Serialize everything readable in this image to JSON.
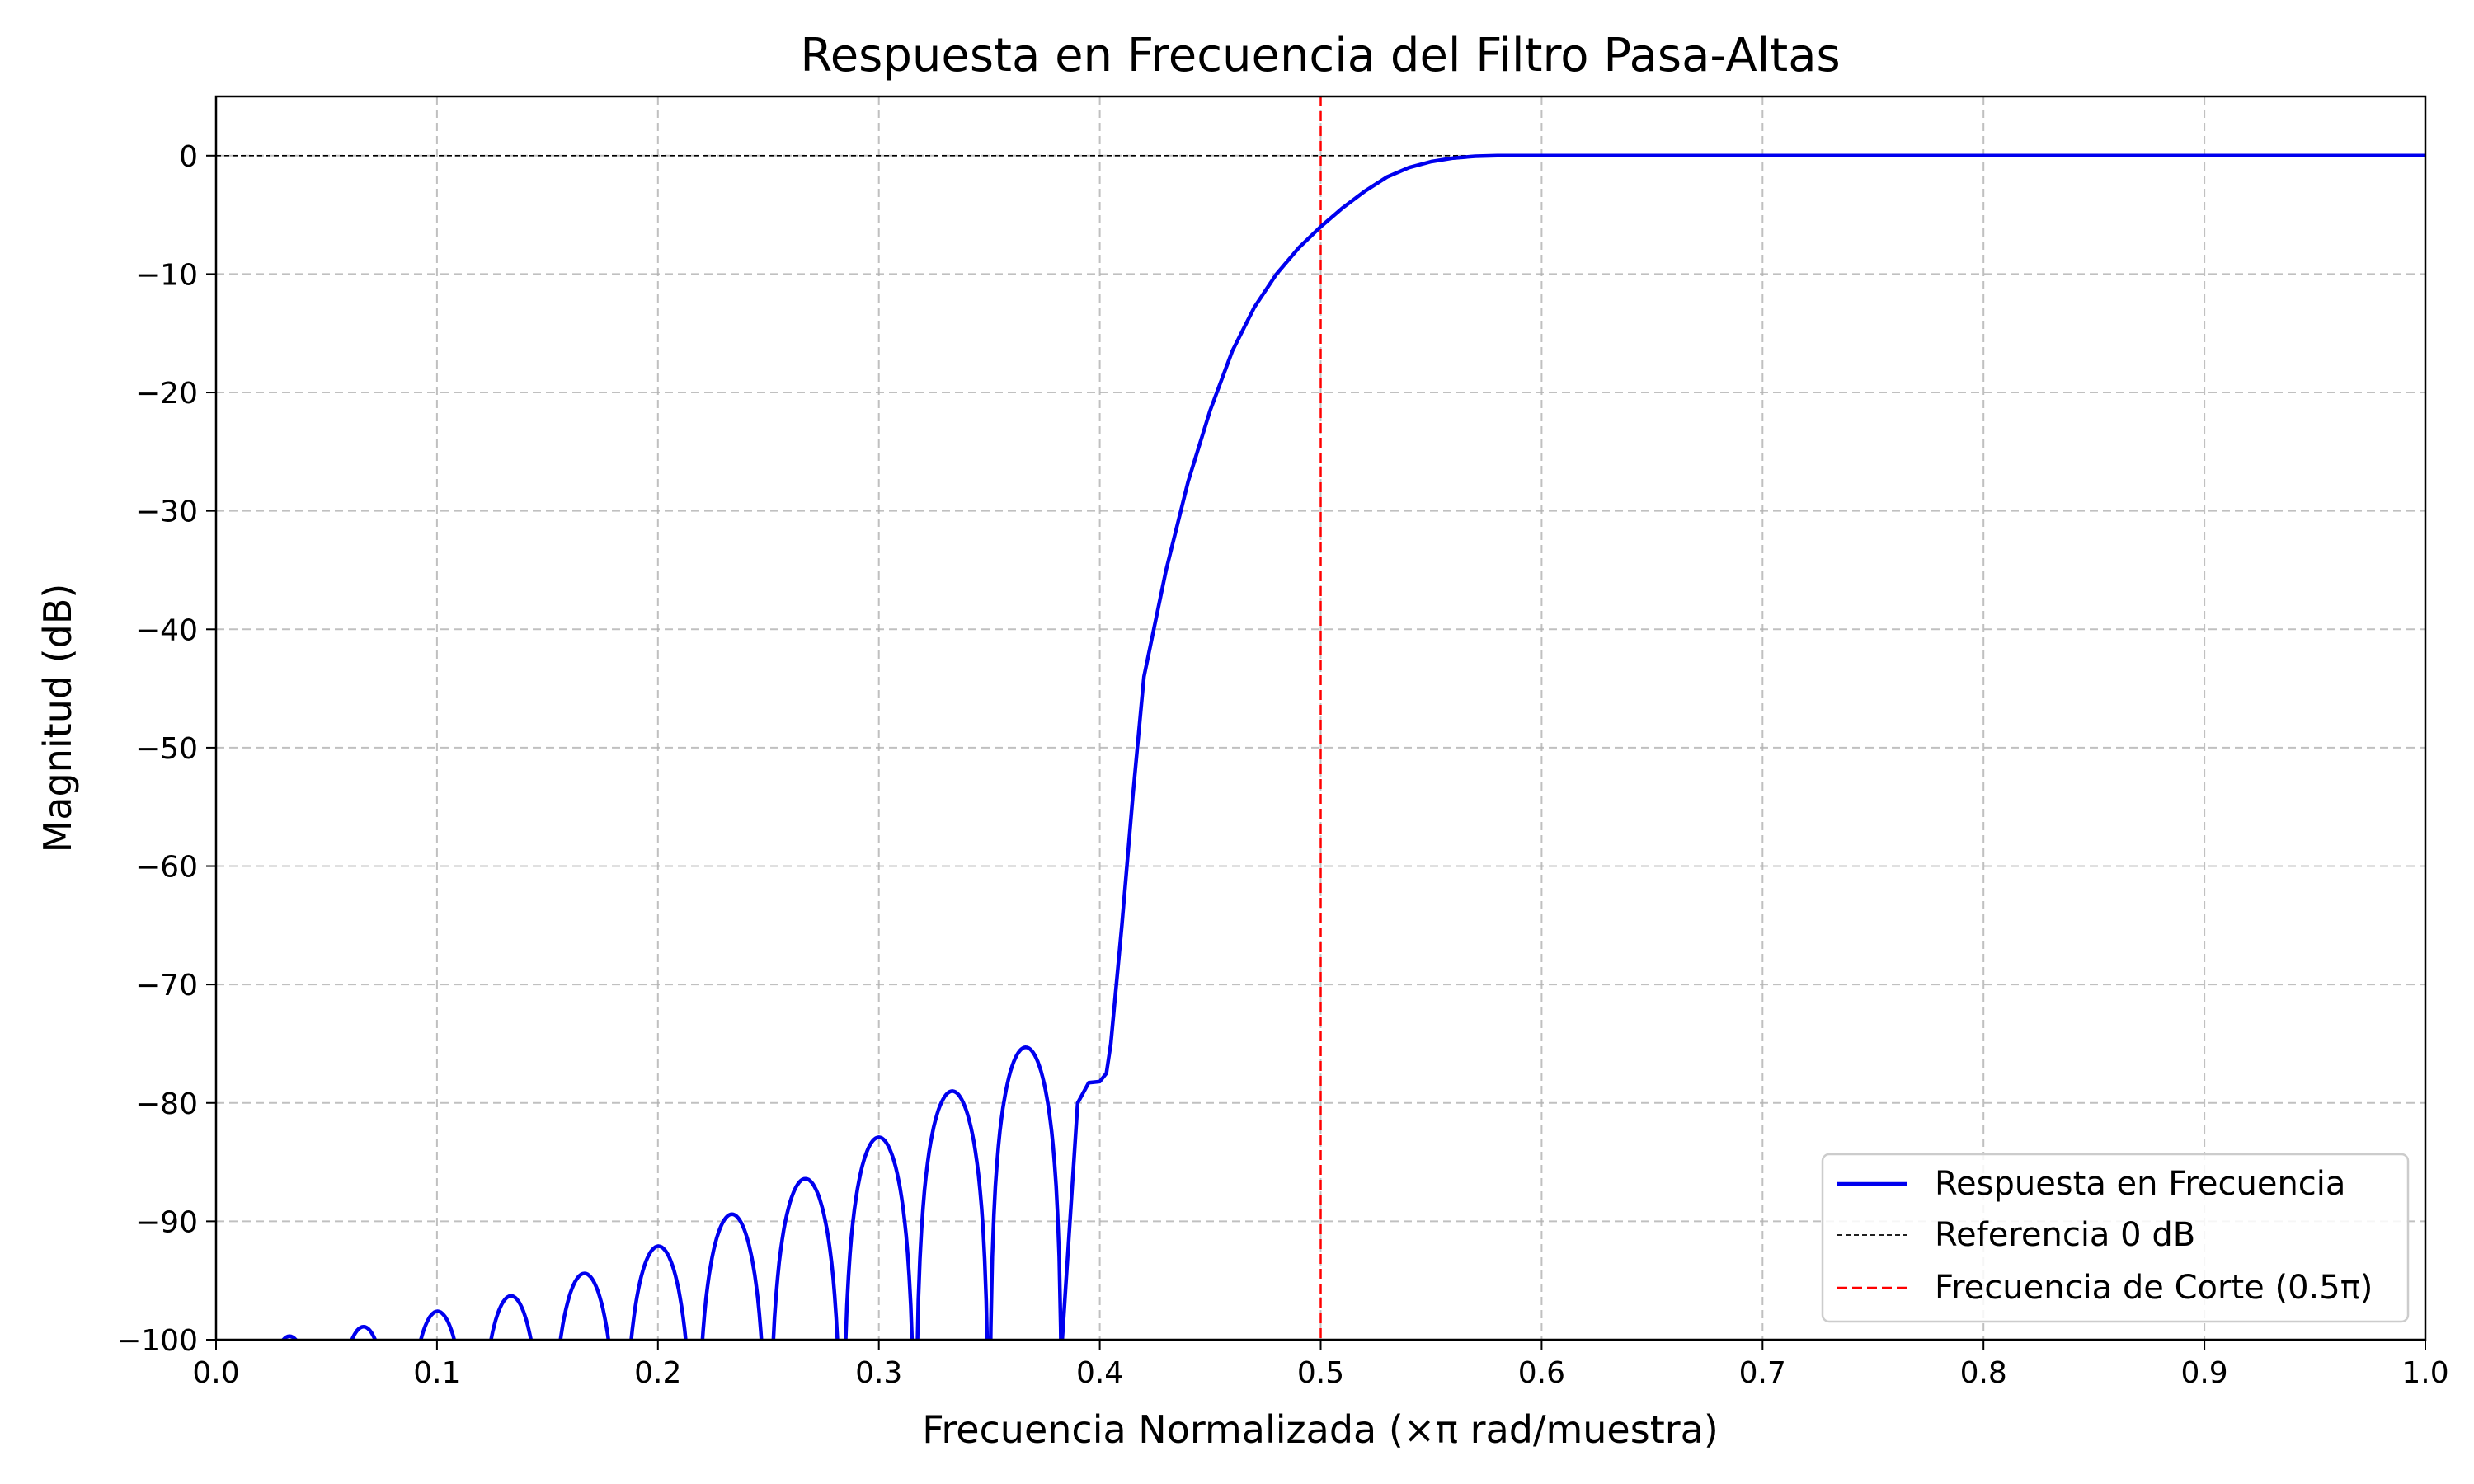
{
  "chart_data": {
    "type": "line",
    "title": "Respuesta en Frecuencia del Filtro Pasa-Altas",
    "xlabel": "Frecuencia Normalizada (×π rad/muestra)",
    "ylabel": "Magnitud (dB)",
    "xlim": [
      0,
      1
    ],
    "ylim": [
      -100,
      5
    ],
    "x_ticks": [
      "0.0",
      "0.1",
      "0.2",
      "0.3",
      "0.4",
      "0.5",
      "0.6",
      "0.7",
      "0.8",
      "0.9",
      "1.0"
    ],
    "y_ticks": [
      "0",
      "−10",
      "−20",
      "−30",
      "−40",
      "−50",
      "−60",
      "−70",
      "−80",
      "−90",
      "−100"
    ],
    "grid": true,
    "legend_position": "lower-right",
    "series": [
      {
        "name": "Respuesta en Frecuencia",
        "color": "#0000ee",
        "style": "solid",
        "sidelobes": {
          "nulls": [
            0.0,
            0.0165,
            0.05,
            0.0835,
            0.117,
            0.15,
            0.1835,
            0.217,
            0.25,
            0.2835,
            0.3165,
            0.35,
            0.383
          ],
          "peaks": [
            -100.8,
            -99.7,
            -98.9,
            -97.6,
            -96.3,
            -94.4,
            -92.1,
            -89.4,
            -86.4,
            -82.9,
            -79.0,
            -75.3
          ]
        },
        "transition": {
          "x": [
            0.383,
            0.39,
            0.395,
            0.4,
            0.403,
            0.405,
            0.41,
            0.415,
            0.42,
            0.43,
            0.44,
            0.45,
            0.46,
            0.47,
            0.48,
            0.49,
            0.5,
            0.51,
            0.52,
            0.53,
            0.54,
            0.55,
            0.56,
            0.57,
            0.58,
            0.6,
            1.0
          ],
          "y": [
            -100,
            -80.0,
            -78.3,
            -78.2,
            -77.5,
            -75.0,
            -65.0,
            -54.0,
            -44.0,
            -35.0,
            -27.5,
            -21.5,
            -16.5,
            -12.8,
            -10.0,
            -7.8,
            -6.0,
            -4.4,
            -3.0,
            -1.8,
            -1.0,
            -0.5,
            -0.2,
            -0.05,
            0.0,
            0.0,
            0.0
          ]
        }
      },
      {
        "name": "Referencia 0 dB",
        "color": "#000000",
        "style": "dashed",
        "y": 0
      },
      {
        "name": "Frecuencia de Corte (0.5π)",
        "color": "#ff0000",
        "style": "dashed",
        "x": 0.5
      }
    ]
  }
}
